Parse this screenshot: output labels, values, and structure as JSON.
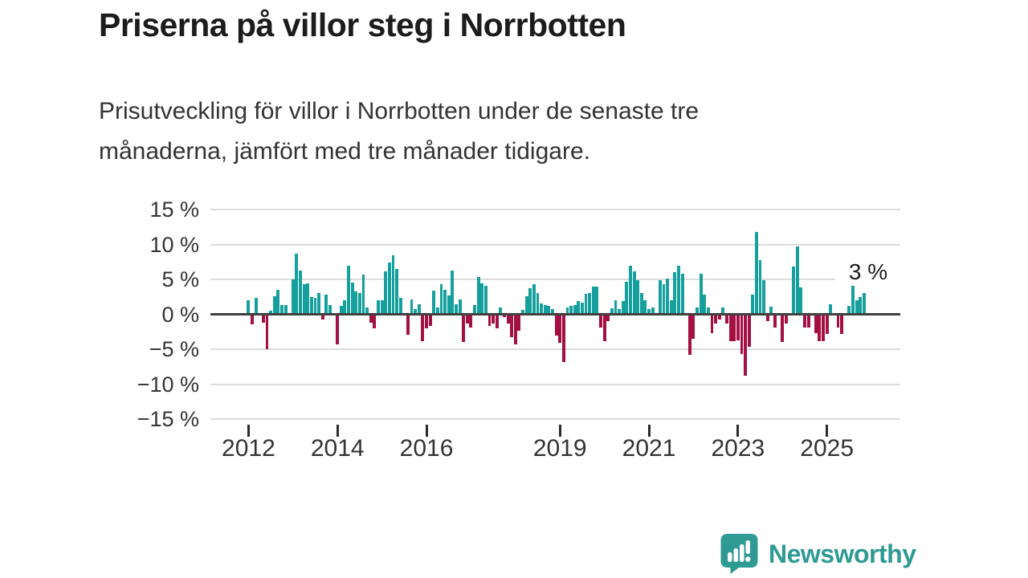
{
  "header": {
    "title": "Priserna på villor steg i Norrbotten",
    "subtitle_lines": [
      "Prisutveckling för villor i Norrbotten under de senaste tre",
      "månaderna, jämfört med tre månader tidigare."
    ]
  },
  "chart_data": {
    "type": "bar",
    "title": "Priserna på villor steg i Norrbotten",
    "subtitle": "Prisutveckling för villor i Norrbotten under de senaste tre månaderna, jämfört med tre månader tidigare.",
    "unit": "%",
    "frequency": "monthly",
    "start_month": "2012-01",
    "end_month": "2025-11",
    "values": [
      2.0,
      -1.4,
      2.3,
      0,
      -1.2,
      -5.0,
      0.5,
      2.6,
      3.5,
      1.3,
      1.3,
      0,
      5.0,
      8.7,
      6.3,
      4.3,
      4.4,
      2.5,
      2.3,
      3.0,
      -0.8,
      2.8,
      1.3,
      0,
      -4.3,
      1.2,
      2.0,
      7.0,
      4.5,
      3.3,
      3.1,
      5.7,
      1.0,
      -1.2,
      -2.0,
      2.0,
      2.0,
      6.1,
      7.4,
      8.5,
      6.5,
      2.3,
      0,
      -2.9,
      2.1,
      0.7,
      1.4,
      -3.8,
      -2.0,
      -1.7,
      3.4,
      1.0,
      4.3,
      3.5,
      2.7,
      6.3,
      1.4,
      2.1,
      -4.0,
      -1.3,
      -1.9,
      1.3,
      5.4,
      4.4,
      4.1,
      -1.7,
      -1.3,
      -2.0,
      1.0,
      -0.4,
      -1.3,
      -3.3,
      -4.3,
      -2.4,
      0.6,
      2.6,
      3.7,
      4.3,
      3.1,
      1.6,
      1.3,
      1.2,
      0.7,
      -3.1,
      -4.1,
      -6.8,
      1.0,
      1.2,
      1.3,
      1.9,
      1.7,
      2.9,
      3.1,
      4.0,
      4.0,
      -1.9,
      -3.9,
      -1.0,
      0.9,
      2.0,
      0.8,
      1.9,
      4.7,
      6.9,
      6.2,
      4.9,
      3.0,
      2.0,
      0.7,
      1.0,
      0,
      4.9,
      4.3,
      5.1,
      2.0,
      6.0,
      6.9,
      5.8,
      0,
      -5.8,
      -3.5,
      1.0,
      5.8,
      2.8,
      1.0,
      -2.7,
      -1.3,
      -0.7,
      1.0,
      -1.3,
      -3.8,
      -3.8,
      -3.7,
      -5.7,
      -8.8,
      -4.6,
      2.8,
      11.8,
      7.8,
      4.9,
      -1.0,
      1.1,
      -1.9,
      0,
      -4.0,
      -1.3,
      0,
      6.8,
      9.7,
      3.9,
      -1.9,
      -1.9,
      0,
      -2.7,
      -3.8,
      -3.8,
      -2.8,
      1.4,
      0,
      -1.9,
      -2.8,
      0,
      1.2,
      4.1,
      2.0,
      2.5,
      3.0
    ],
    "ylim": [
      -15,
      15
    ],
    "grid": "horizontal",
    "legend": "none",
    "y_ticks": [
      {
        "value": 15,
        "label": "15 %"
      },
      {
        "value": 10,
        "label": "10 %"
      },
      {
        "value": 5,
        "label": "5 %"
      },
      {
        "value": 0,
        "label": "0 %"
      },
      {
        "value": -5,
        "label": "−5 %"
      },
      {
        "value": -10,
        "label": "−10 %"
      },
      {
        "value": -15,
        "label": "−15 %"
      }
    ],
    "x_ticks": [
      {
        "label": "2012",
        "month_index": 0
      },
      {
        "label": "2014",
        "month_index": 24
      },
      {
        "label": "2016",
        "month_index": 48
      },
      {
        "label": "2019",
        "month_index": 84
      },
      {
        "label": "2021",
        "month_index": 108
      },
      {
        "label": "2023",
        "month_index": 132
      },
      {
        "label": "2025",
        "month_index": 156
      }
    ],
    "annotation": {
      "text": "3 %",
      "value": 3,
      "month": "2025-11"
    },
    "colors": {
      "positive": "#16a09d",
      "negative": "#a41044",
      "zero_line": "#404040",
      "gridline": "#dcdcdc",
      "text": "#333333"
    }
  },
  "branding": {
    "logo_text": "Newsworthy",
    "logo_color": "#2e9a93",
    "logo_icon": "speech-bubble-bar-chart-icon"
  }
}
